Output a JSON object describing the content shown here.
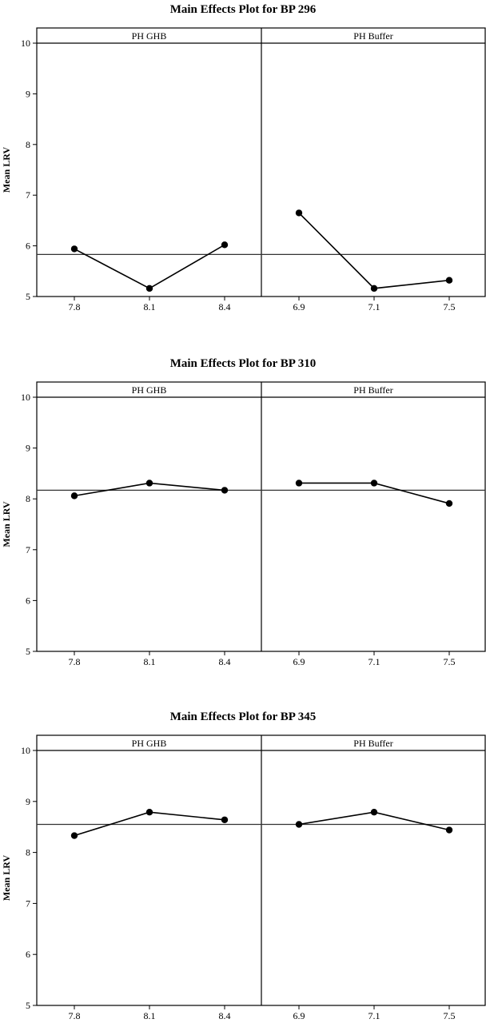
{
  "chart_data": [
    {
      "type": "line",
      "title": "Main Effects Plot for BP 296",
      "ylabel": "Mean LRV",
      "ylim": [
        5,
        10
      ],
      "yticks": [
        5,
        6,
        7,
        8,
        9,
        10
      ],
      "reference_line": 5.83,
      "panels": [
        {
          "label": "PH GHB",
          "categories": [
            "7.8",
            "8.1",
            "8.4"
          ],
          "values": [
            5.94,
            5.16,
            6.02
          ]
        },
        {
          "label": "PH Buffer",
          "categories": [
            "6.9",
            "7.1",
            "7.5"
          ],
          "values": [
            6.65,
            5.16,
            5.32
          ]
        }
      ]
    },
    {
      "type": "line",
      "title": "Main Effects Plot for BP 310",
      "ylabel": "Mean LRV",
      "ylim": [
        5,
        10
      ],
      "yticks": [
        5,
        6,
        7,
        8,
        9,
        10
      ],
      "reference_line": 8.17,
      "panels": [
        {
          "label": "PH GHB",
          "categories": [
            "7.8",
            "8.1",
            "8.4"
          ],
          "values": [
            8.06,
            8.31,
            8.17
          ]
        },
        {
          "label": "PH Buffer",
          "categories": [
            "6.9",
            "7.1",
            "7.5"
          ],
          "values": [
            8.31,
            8.31,
            7.91
          ]
        }
      ]
    },
    {
      "type": "line",
      "title": "Main Effects Plot for BP 345",
      "ylabel": "Mean LRV",
      "ylim": [
        5,
        10
      ],
      "yticks": [
        5,
        6,
        7,
        8,
        9,
        10
      ],
      "reference_line": 8.55,
      "panels": [
        {
          "label": "PH GHB",
          "categories": [
            "7.8",
            "8.1",
            "8.4"
          ],
          "values": [
            8.33,
            8.79,
            8.64
          ]
        },
        {
          "label": "PH Buffer",
          "categories": [
            "6.9",
            "7.1",
            "7.5"
          ],
          "values": [
            8.55,
            8.79,
            8.44
          ]
        }
      ]
    }
  ]
}
